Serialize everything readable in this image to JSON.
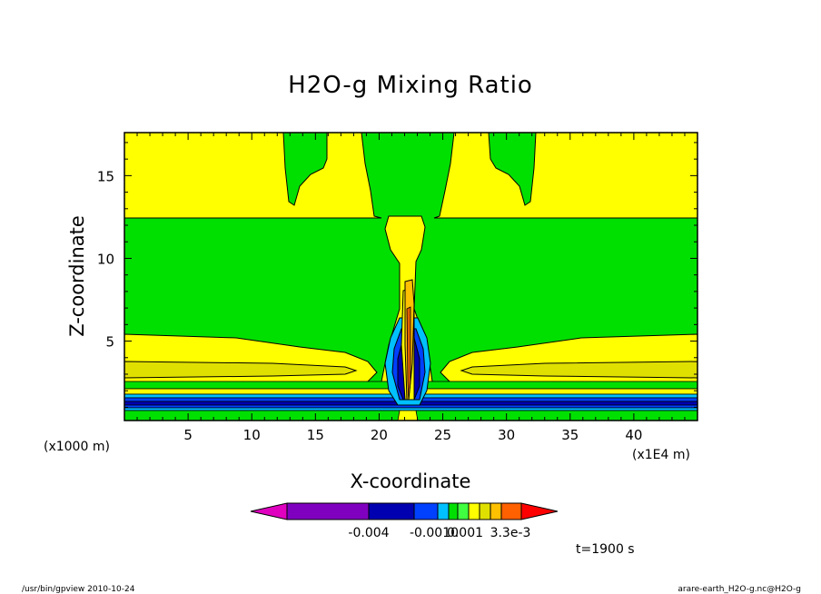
{
  "chart_data": {
    "type": "heatmap",
    "title": "H2O-g Mixing Ratio",
    "xlabel": "X-coordinate",
    "ylabel": "Z-coordinate",
    "x_unit": "(x1E4 m)",
    "y_unit": "(x1000 m)",
    "xlim": [
      0,
      45
    ],
    "ylim": [
      0.2,
      17.6
    ],
    "x_ticks": [
      5,
      10,
      15,
      20,
      25,
      30,
      35,
      40
    ],
    "y_ticks": [
      5,
      10,
      15
    ],
    "colorbar": {
      "colors": [
        "#e000c0",
        "#8000c0",
        "#0000b0",
        "#0040ff",
        "#00c0ff",
        "#00e000",
        "#40ff40",
        "#ffff00",
        "#e0e000",
        "#ffc000",
        "#ff6000",
        "#ff0000"
      ],
      "tick_labels": [
        "-0.004",
        "-0.0010",
        "0.001",
        "3.3e-3"
      ]
    },
    "time_label": "t=1900 s",
    "regions_note": "filled contour field"
  },
  "footer": {
    "left": "/usr/bin/gpview   2010-10-24",
    "right": "arare-earth_H2O-g.nc@H2O-g"
  }
}
